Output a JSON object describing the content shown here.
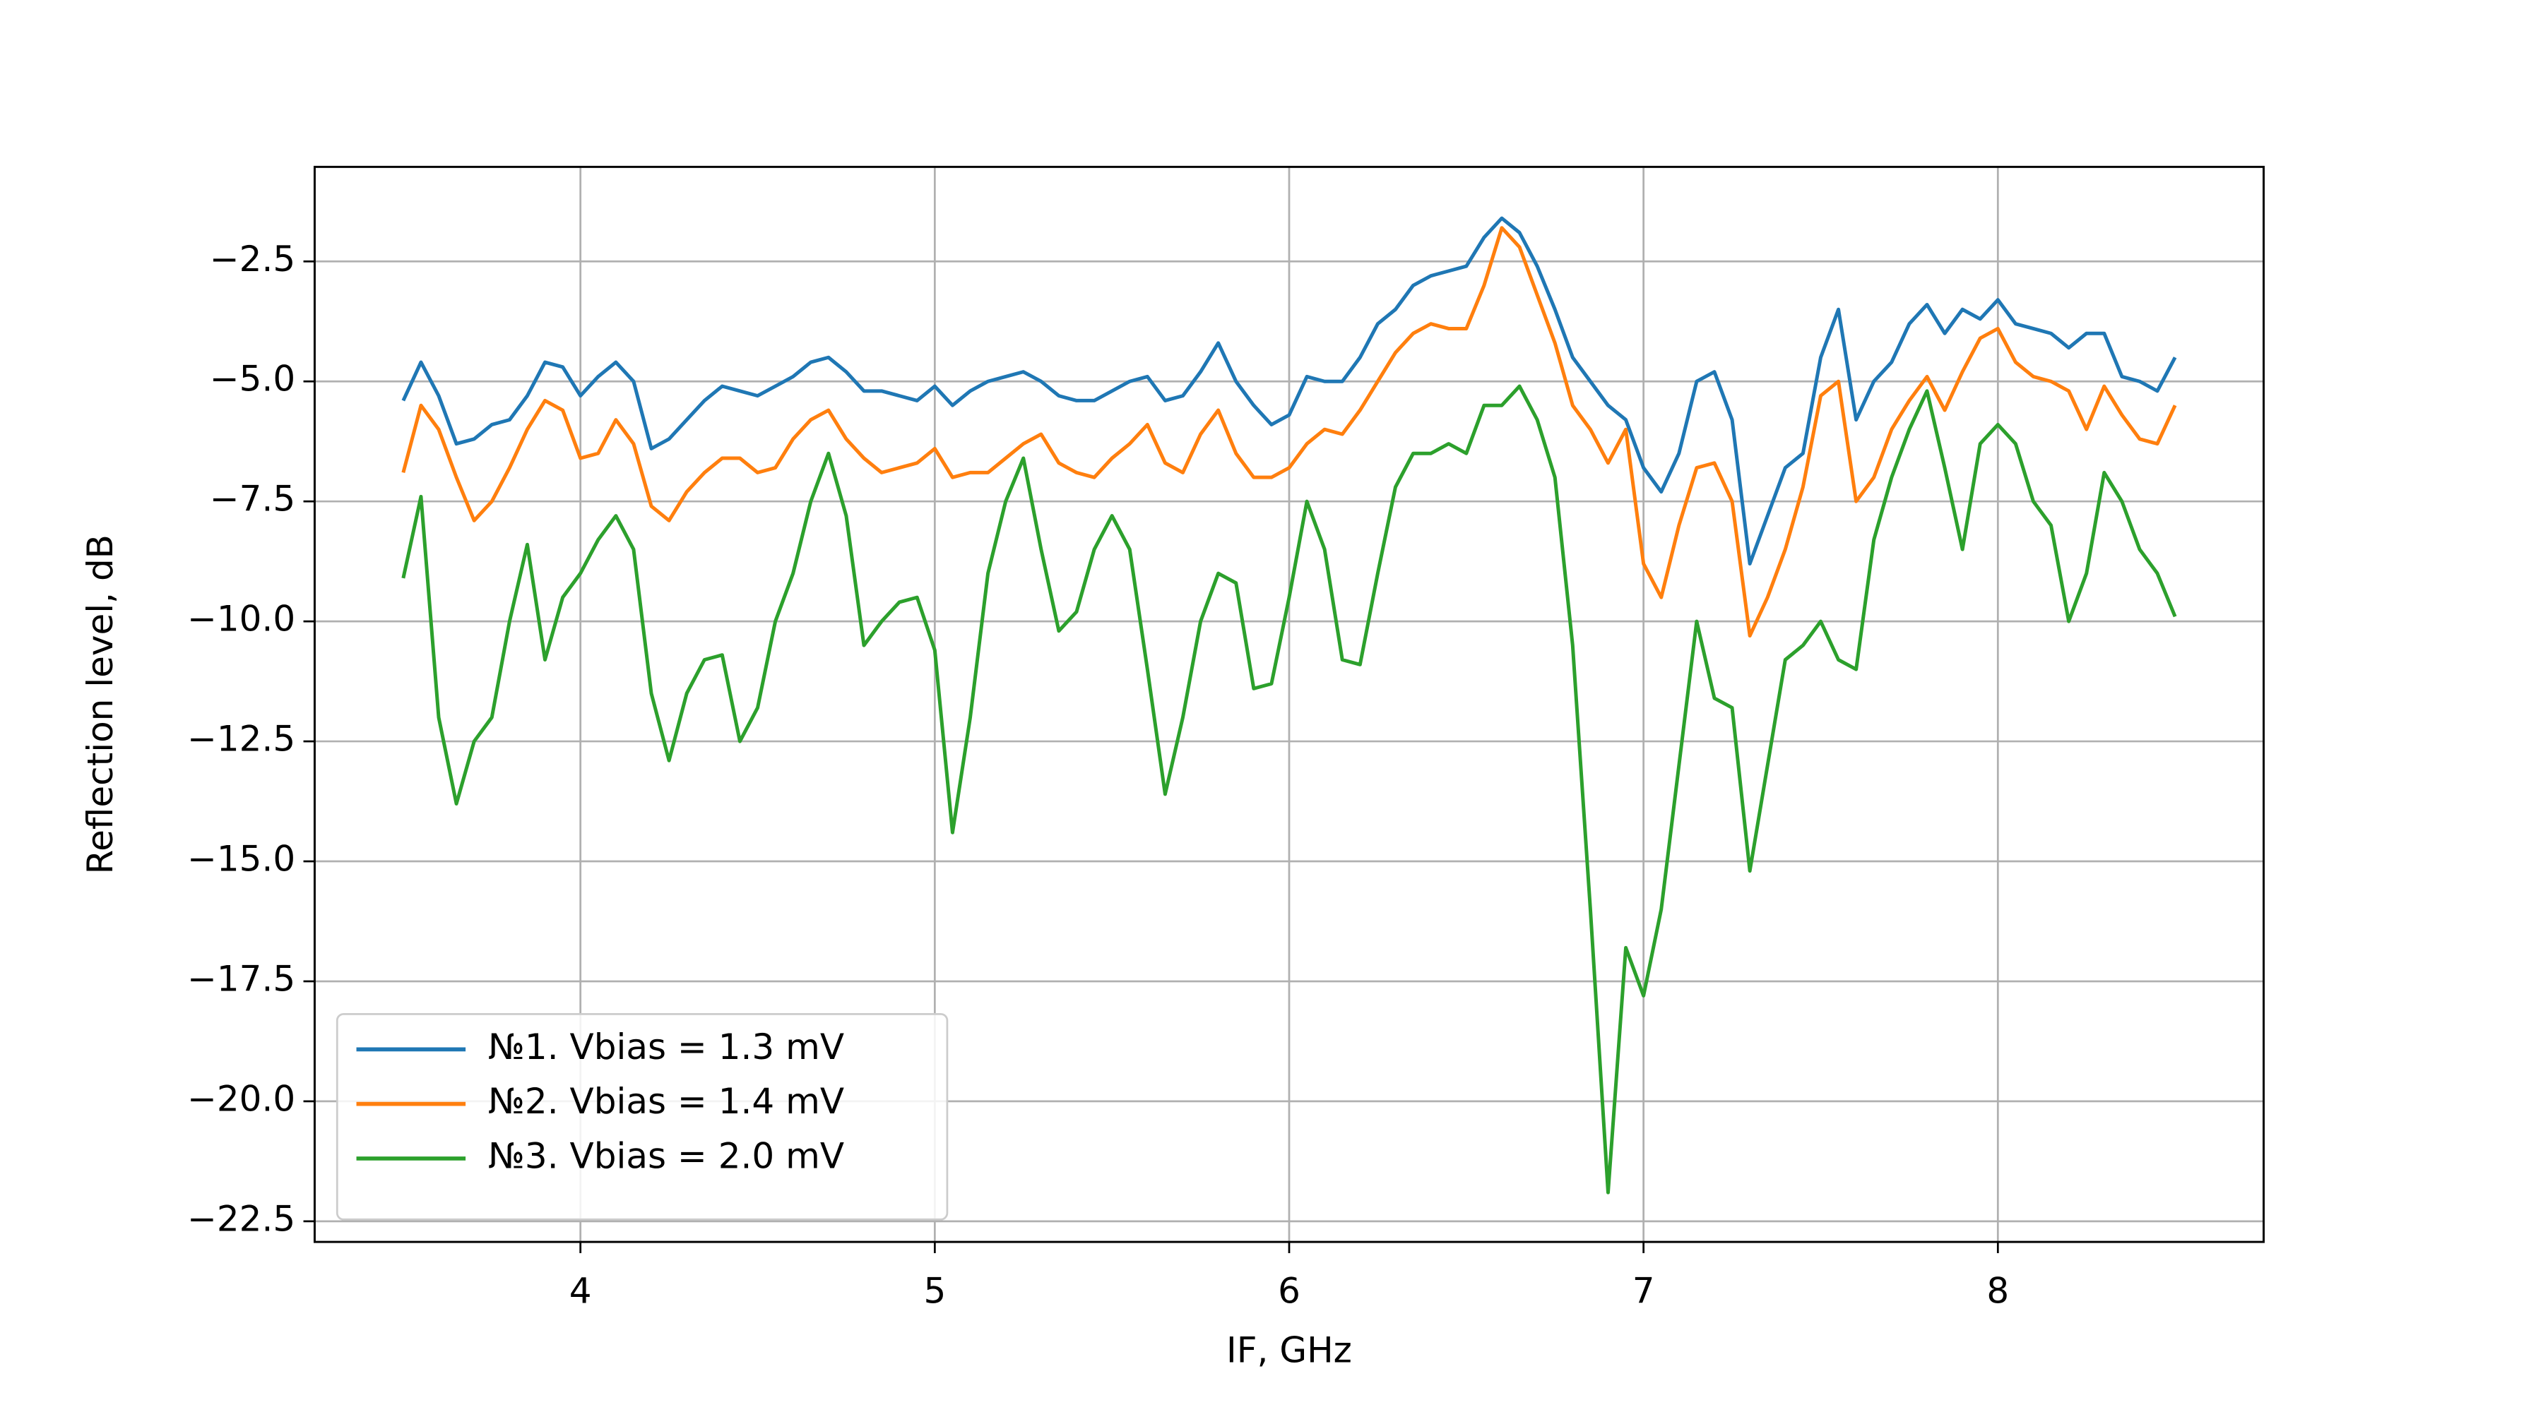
{
  "chart_data": {
    "type": "line",
    "xlabel": "IF, GHz",
    "ylabel": "Reflection level, dB",
    "x": [
      3.5,
      3.55,
      3.6,
      3.65,
      3.7,
      3.75,
      3.8,
      3.85,
      3.9,
      3.95,
      4.0,
      4.05,
      4.1,
      4.15,
      4.2,
      4.25,
      4.3,
      4.35,
      4.4,
      4.45,
      4.5,
      4.55,
      4.6,
      4.65,
      4.7,
      4.75,
      4.8,
      4.85,
      4.9,
      4.95,
      5.0,
      5.05,
      5.1,
      5.15,
      5.2,
      5.25,
      5.3,
      5.35,
      5.4,
      5.45,
      5.5,
      5.55,
      5.6,
      5.65,
      5.7,
      5.75,
      5.8,
      5.85,
      5.9,
      5.95,
      6.0,
      6.05,
      6.1,
      6.15,
      6.2,
      6.25,
      6.3,
      6.35,
      6.4,
      6.45,
      6.5,
      6.55,
      6.6,
      6.65,
      6.7,
      6.75,
      6.8,
      6.85,
      6.9,
      6.95,
      7.0,
      7.05,
      7.1,
      7.15,
      7.2,
      7.25,
      7.3,
      7.35,
      7.4,
      7.45,
      7.5,
      7.55,
      7.6,
      7.65,
      7.7,
      7.75,
      7.8,
      7.85,
      7.9,
      7.95,
      8.0,
      8.05,
      8.1,
      8.15,
      8.2,
      8.25,
      8.3,
      8.35,
      8.4,
      8.45,
      8.5
    ],
    "series": [
      {
        "name": "№1. Vbias = 1.3 mV",
        "color": "#1f77b4",
        "values": [
          -5.4,
          -4.6,
          -5.3,
          -6.3,
          -6.2,
          -5.9,
          -5.8,
          -5.3,
          -4.6,
          -4.7,
          -5.3,
          -4.9,
          -4.6,
          -5.0,
          -6.4,
          -6.2,
          -5.8,
          -5.4,
          -5.1,
          -5.2,
          -5.3,
          -5.1,
          -4.9,
          -4.6,
          -4.5,
          -4.8,
          -5.2,
          -5.2,
          -5.3,
          -5.4,
          -5.1,
          -5.5,
          -5.2,
          -5.0,
          -4.9,
          -4.8,
          -5.0,
          -5.3,
          -5.4,
          -5.4,
          -5.2,
          -5.0,
          -4.9,
          -5.4,
          -5.3,
          -4.8,
          -4.2,
          -5.0,
          -5.5,
          -5.9,
          -5.7,
          -4.9,
          -5.0,
          -5.0,
          -4.5,
          -3.8,
          -3.5,
          -3.0,
          -2.8,
          -2.7,
          -2.6,
          -2.0,
          -1.6,
          -1.9,
          -2.6,
          -3.5,
          -4.5,
          -5.0,
          -5.5,
          -5.8,
          -6.8,
          -7.3,
          -6.5,
          -5.0,
          -4.8,
          -5.8,
          -8.8,
          -7.8,
          -6.8,
          -6.5,
          -4.5,
          -3.5,
          -5.8,
          -5.0,
          -4.6,
          -3.8,
          -3.4,
          -4.0,
          -3.5,
          -3.7,
          -3.3,
          -3.8,
          -3.9,
          -4.0,
          -4.3,
          -4.0,
          -4.0,
          -4.9,
          -5.0,
          -5.2,
          -4.5
        ]
      },
      {
        "name": "№2. Vbias = 1.4 mV",
        "color": "#ff7f0e",
        "values": [
          -6.9,
          -5.5,
          -6.0,
          -7.0,
          -7.9,
          -7.5,
          -6.8,
          -6.0,
          -5.4,
          -5.6,
          -6.6,
          -6.5,
          -5.8,
          -6.3,
          -7.6,
          -7.9,
          -7.3,
          -6.9,
          -6.6,
          -6.6,
          -6.9,
          -6.8,
          -6.2,
          -5.8,
          -5.6,
          -6.2,
          -6.6,
          -6.9,
          -6.8,
          -6.7,
          -6.4,
          -7.0,
          -6.9,
          -6.9,
          -6.6,
          -6.3,
          -6.1,
          -6.7,
          -6.9,
          -7.0,
          -6.6,
          -6.3,
          -5.9,
          -6.7,
          -6.9,
          -6.1,
          -5.6,
          -6.5,
          -7.0,
          -7.0,
          -6.8,
          -6.3,
          -6.0,
          -6.1,
          -5.6,
          -5.0,
          -4.4,
          -4.0,
          -3.8,
          -3.9,
          -3.9,
          -3.0,
          -1.8,
          -2.2,
          -3.2,
          -4.2,
          -5.5,
          -6.0,
          -6.7,
          -6.0,
          -8.8,
          -9.5,
          -8.0,
          -6.8,
          -6.7,
          -7.5,
          -10.3,
          -9.5,
          -8.5,
          -7.2,
          -5.3,
          -5.0,
          -7.5,
          -7.0,
          -6.0,
          -5.4,
          -4.9,
          -5.6,
          -4.8,
          -4.1,
          -3.9,
          -4.6,
          -4.9,
          -5.0,
          -5.2,
          -6.0,
          -5.1,
          -5.7,
          -6.2,
          -6.3,
          -5.5
        ]
      },
      {
        "name": "№3. Vbias = 2.0 mV",
        "color": "#2ca02c",
        "values": [
          -9.1,
          -7.4,
          -12.0,
          -13.8,
          -12.5,
          -12.0,
          -10.0,
          -8.4,
          -10.8,
          -9.5,
          -9.0,
          -8.3,
          -7.8,
          -8.5,
          -11.5,
          -12.9,
          -11.5,
          -10.8,
          -10.7,
          -12.5,
          -11.8,
          -10.0,
          -9.0,
          -7.5,
          -6.5,
          -7.8,
          -10.5,
          -10.0,
          -9.6,
          -9.5,
          -10.6,
          -14.4,
          -12.0,
          -9.0,
          -7.5,
          -6.6,
          -8.5,
          -10.2,
          -9.8,
          -8.5,
          -7.8,
          -8.5,
          -11.0,
          -13.6,
          -12.0,
          -10.0,
          -9.0,
          -9.2,
          -11.4,
          -11.3,
          -9.5,
          -7.5,
          -8.5,
          -10.8,
          -10.9,
          -9.0,
          -7.2,
          -6.5,
          -6.5,
          -6.3,
          -6.5,
          -5.5,
          -5.5,
          -5.1,
          -5.8,
          -7.0,
          -10.5,
          -16.0,
          -21.9,
          -16.8,
          -17.8,
          -16.0,
          -13.0,
          -10.0,
          -11.6,
          -11.8,
          -15.2,
          -13.0,
          -10.8,
          -10.5,
          -10.0,
          -10.8,
          -11.0,
          -8.3,
          -7.0,
          -6.0,
          -5.2,
          -6.8,
          -8.5,
          -6.3,
          -5.9,
          -6.3,
          -7.5,
          -8.0,
          -10.0,
          -9.0,
          -6.9,
          -7.5,
          -8.5,
          -9.0,
          -9.9
        ]
      }
    ],
    "xlim": [
      3.25,
      8.75
    ],
    "ylim": [
      -22.93,
      -0.53
    ],
    "xticks": [
      4,
      5,
      6,
      7,
      8
    ],
    "yticks": [
      {
        "value": -2.5,
        "label": "−2.5"
      },
      {
        "value": -5.0,
        "label": "−5.0"
      },
      {
        "value": -7.5,
        "label": "−7.5"
      },
      {
        "value": -10.0,
        "label": "−10.0"
      },
      {
        "value": -12.5,
        "label": "−12.5"
      },
      {
        "value": -15.0,
        "label": "−15.0"
      },
      {
        "value": -17.5,
        "label": "−17.5"
      },
      {
        "value": -20.0,
        "label": "−20.0"
      },
      {
        "value": -22.5,
        "label": "−22.5"
      }
    ],
    "grid": true,
    "legend": "lower left"
  }
}
